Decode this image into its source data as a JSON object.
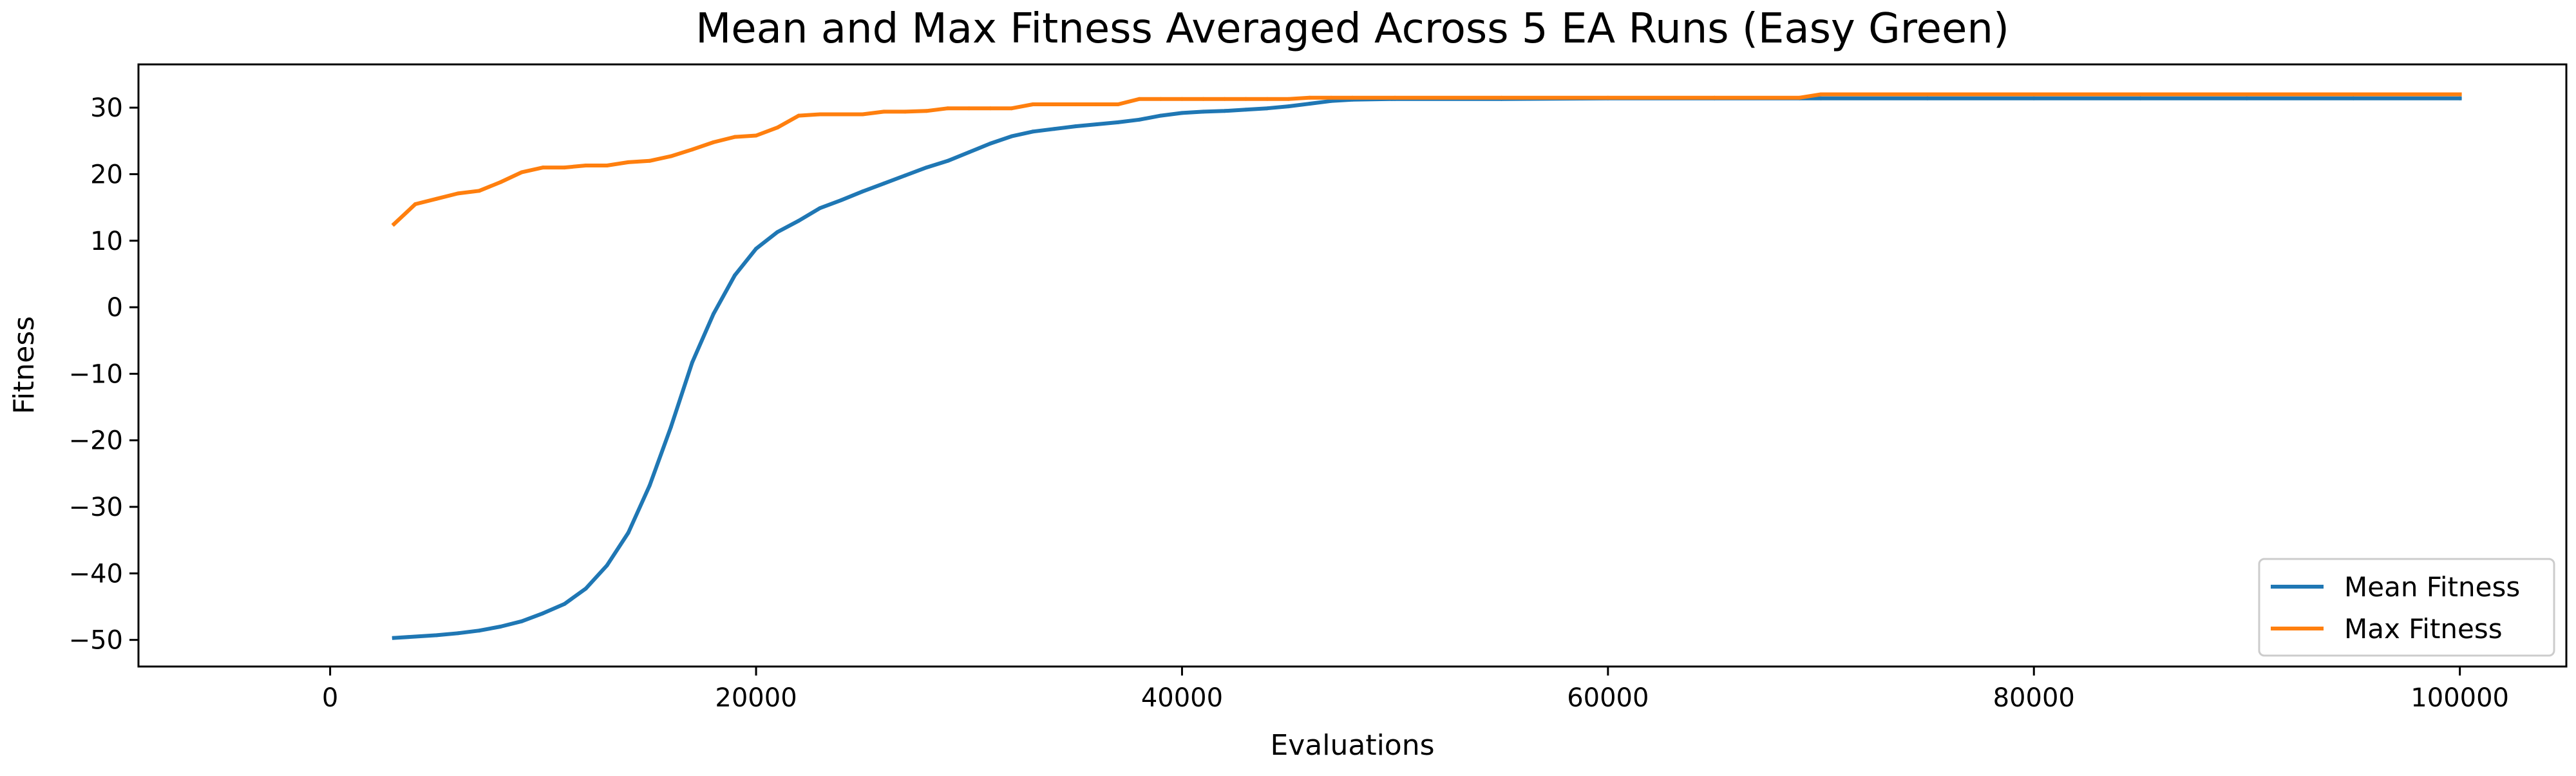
{
  "chart_data": {
    "type": "line",
    "title": "Mean and Max Fitness Averaged Across 5 EA Runs (Easy Green)",
    "xlabel": "Evaluations",
    "ylabel": "Fitness",
    "xlim": [
      -9000,
      105000
    ],
    "ylim": [
      -54,
      36.5
    ],
    "xticks": [
      0,
      20000,
      40000,
      60000,
      80000,
      100000
    ],
    "xtick_labels": [
      "0",
      "20000",
      "40000",
      "60000",
      "80000",
      "100000"
    ],
    "yticks": [
      -50,
      -40,
      -30,
      -20,
      -10,
      0,
      10,
      20,
      30
    ],
    "ytick_labels": [
      "−50",
      "−40",
      "−30",
      "−20",
      "−10",
      "0",
      "10",
      "20",
      "30"
    ],
    "grid": false,
    "legend_position": "bottom-right",
    "x": [
      3000,
      4000,
      5000,
      6000,
      7000,
      8000,
      9000,
      10000,
      11000,
      12000,
      13000,
      14000,
      15000,
      16000,
      17000,
      18000,
      19000,
      20000,
      21000,
      22000,
      23000,
      24000,
      25000,
      26000,
      27000,
      28000,
      29000,
      30000,
      31000,
      32000,
      33000,
      34000,
      35000,
      36000,
      37000,
      38000,
      39000,
      40000,
      41000,
      42000,
      43000,
      44000,
      45000,
      46000,
      47000,
      48000,
      50000,
      55000,
      60000,
      65000,
      69000,
      70000,
      75000,
      80000,
      85000,
      90000,
      95000,
      100000
    ],
    "series": [
      {
        "name": "Mean Fitness",
        "color": "#1f77b4",
        "values": [
          -49.7,
          -49.5,
          -49.3,
          -49.0,
          -48.6,
          -48.0,
          -47.2,
          -46.0,
          -44.6,
          -42.3,
          -38.8,
          -33.9,
          -26.8,
          -18.0,
          -8.3,
          -1.0,
          4.8,
          8.8,
          11.3,
          13.0,
          14.9,
          16.1,
          17.4,
          18.6,
          19.8,
          21.0,
          22.0,
          23.3,
          24.6,
          25.7,
          26.4,
          26.8,
          27.2,
          27.5,
          27.8,
          28.2,
          28.8,
          29.2,
          29.4,
          29.5,
          29.7,
          29.9,
          30.2,
          30.6,
          31.0,
          31.2,
          31.3,
          31.3,
          31.4,
          31.4,
          31.4,
          31.4,
          31.4,
          31.4,
          31.4,
          31.4,
          31.4,
          31.4
        ]
      },
      {
        "name": "Max Fitness",
        "color": "#ff7f0e",
        "values": [
          12.5,
          15.5,
          16.3,
          17.1,
          17.5,
          18.8,
          20.3,
          21.0,
          21.0,
          21.3,
          21.3,
          21.8,
          22.0,
          22.7,
          23.7,
          24.8,
          25.6,
          25.8,
          27.0,
          28.8,
          29.0,
          29.0,
          29.0,
          29.4,
          29.4,
          29.5,
          29.9,
          29.9,
          29.9,
          29.9,
          30.5,
          30.5,
          30.5,
          30.5,
          30.5,
          31.3,
          31.3,
          31.3,
          31.3,
          31.3,
          31.3,
          31.3,
          31.3,
          31.5,
          31.5,
          31.5,
          31.5,
          31.5,
          31.5,
          31.5,
          31.5,
          32.0,
          32.0,
          32.0,
          32.0,
          32.0,
          32.0,
          32.0
        ]
      }
    ]
  }
}
